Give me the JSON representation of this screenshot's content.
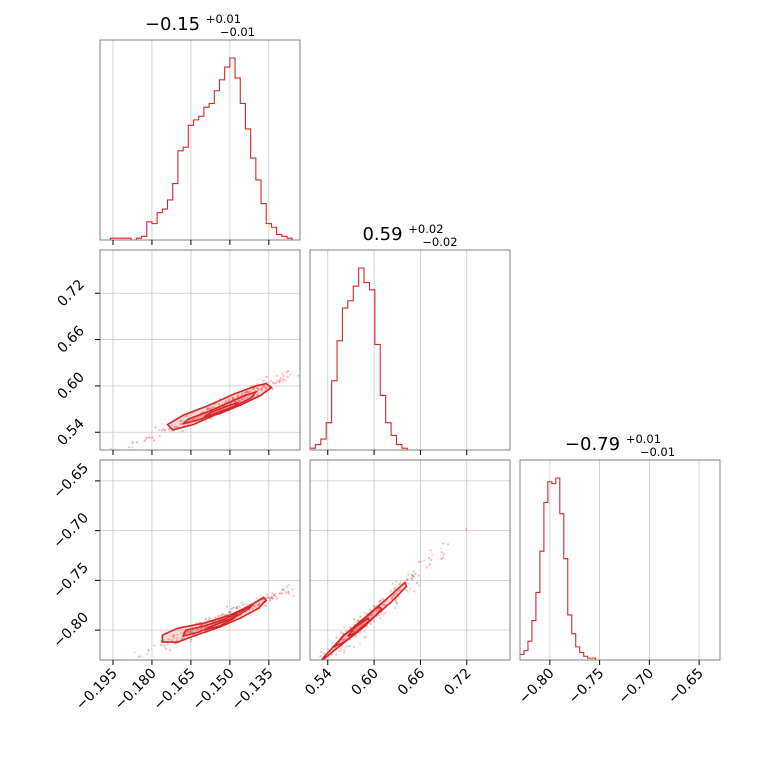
{
  "chart_data": {
    "type": "corner",
    "series_color": "#d62728",
    "parameters": [
      {
        "title_main": "−0.15",
        "title_upper": "+0.01",
        "title_lower": "−0.01",
        "median": -0.15
      },
      {
        "title_main": "0.59",
        "title_upper": "+0.02",
        "title_lower": "−0.02",
        "median": 0.59
      },
      {
        "title_main": "−0.79",
        "title_upper": "+0.01",
        "title_lower": "−0.01",
        "median": -0.79
      }
    ],
    "axes": {
      "p0": {
        "range": [
          -0.2,
          -0.123
        ],
        "ticks": [
          -0.195,
          -0.18,
          -0.165,
          -0.15,
          -0.135
        ],
        "tick_labels": [
          "−0.195",
          "−0.180",
          "−0.165",
          "−0.150",
          "−0.135"
        ]
      },
      "p1": {
        "range": [
          0.517,
          0.776
        ],
        "ticks": [
          0.54,
          0.6,
          0.66,
          0.72
        ],
        "tick_labels": [
          "0.54",
          "0.60",
          "0.66",
          "0.72"
        ]
      },
      "p2": {
        "range": [
          -0.83,
          -0.629
        ],
        "ticks": [
          -0.8,
          -0.75,
          -0.7,
          -0.65
        ],
        "tick_labels": [
          "−0.80",
          "−0.75",
          "−0.70",
          "−0.65"
        ]
      }
    },
    "histograms": [
      {
        "param": 0,
        "edges": [
          -0.2,
          -0.196,
          -0.194,
          -0.192,
          -0.19,
          -0.188,
          -0.186,
          -0.184,
          -0.182,
          -0.18,
          -0.178,
          -0.176,
          -0.174,
          -0.172,
          -0.17,
          -0.168,
          -0.166,
          -0.164,
          -0.162,
          -0.16,
          -0.158,
          -0.156,
          -0.154,
          -0.152,
          -0.15,
          -0.148,
          -0.146,
          -0.144,
          -0.142,
          -0.14,
          -0.138,
          -0.136,
          -0.134,
          -0.132,
          -0.13,
          -0.128,
          -0.126,
          -0.123
        ],
        "counts": [
          0,
          1,
          1,
          1,
          1,
          0,
          1,
          2,
          10,
          9,
          15,
          17,
          22,
          31,
          49,
          51,
          63,
          66,
          68,
          73,
          75,
          82,
          88,
          95,
          100,
          89,
          75,
          61,
          45,
          33,
          20,
          9,
          7,
          3,
          2,
          1,
          0
        ]
      },
      {
        "param": 1,
        "edges": [
          0.517,
          0.524,
          0.531,
          0.538,
          0.545,
          0.552,
          0.559,
          0.566,
          0.573,
          0.58,
          0.587,
          0.594,
          0.601,
          0.608,
          0.615,
          0.622,
          0.629,
          0.636,
          0.643,
          0.65,
          0.657,
          0.664,
          0.776
        ],
        "counts": [
          1,
          3,
          6,
          15,
          38,
          60,
          78,
          82,
          90,
          100,
          92,
          88,
          58,
          30,
          15,
          8,
          3,
          1,
          0,
          0,
          0,
          0
        ]
      },
      {
        "param": 2,
        "edges": [
          -0.83,
          -0.826,
          -0.822,
          -0.818,
          -0.814,
          -0.81,
          -0.806,
          -0.802,
          -0.798,
          -0.794,
          -0.79,
          -0.786,
          -0.782,
          -0.778,
          -0.774,
          -0.77,
          -0.766,
          -0.762,
          -0.758,
          -0.754,
          -0.75,
          -0.746,
          -0.629
        ],
        "counts": [
          3,
          5,
          10,
          21,
          36,
          58,
          84,
          95,
          94,
          97,
          78,
          54,
          24,
          14,
          7,
          4,
          2,
          1,
          1,
          0,
          0,
          0
        ]
      }
    ],
    "pairs": [
      {
        "x": 0,
        "y": 1,
        "contours": [
          [
            [
              -0.172,
              0.543
            ],
            [
              -0.174,
              0.55
            ],
            [
              -0.168,
              0.562
            ],
            [
              -0.158,
              0.575
            ],
            [
              -0.148,
              0.59
            ],
            [
              -0.14,
              0.6
            ],
            [
              -0.136,
              0.603
            ],
            [
              -0.134,
              0.598
            ],
            [
              -0.138,
              0.588
            ],
            [
              -0.146,
              0.575
            ],
            [
              -0.156,
              0.562
            ],
            [
              -0.164,
              0.55
            ]
          ],
          [
            [
              -0.168,
              0.551
            ],
            [
              -0.166,
              0.557
            ],
            [
              -0.158,
              0.567
            ],
            [
              -0.15,
              0.579
            ],
            [
              -0.144,
              0.588
            ],
            [
              -0.14,
              0.592
            ],
            [
              -0.142,
              0.584
            ],
            [
              -0.148,
              0.574
            ],
            [
              -0.155,
              0.565
            ],
            [
              -0.162,
              0.556
            ]
          ],
          [
            [
              -0.16,
              0.56
            ],
            [
              -0.157,
              0.566
            ],
            [
              -0.151,
              0.574
            ],
            [
              -0.147,
              0.578
            ],
            [
              -0.149,
              0.571
            ],
            [
              -0.154,
              0.564
            ]
          ]
        ]
      },
      {
        "x": 0,
        "y": 2,
        "contours": [
          [
            [
              -0.176,
              -0.812
            ],
            [
              -0.176,
              -0.805
            ],
            [
              -0.17,
              -0.798
            ],
            [
              -0.16,
              -0.793
            ],
            [
              -0.15,
              -0.785
            ],
            [
              -0.142,
              -0.775
            ],
            [
              -0.137,
              -0.767
            ],
            [
              -0.136,
              -0.77
            ],
            [
              -0.139,
              -0.778
            ],
            [
              -0.146,
              -0.788
            ],
            [
              -0.154,
              -0.797
            ],
            [
              -0.164,
              -0.806
            ],
            [
              -0.17,
              -0.812
            ]
          ],
          [
            [
              -0.168,
              -0.806
            ],
            [
              -0.167,
              -0.8
            ],
            [
              -0.16,
              -0.796
            ],
            [
              -0.152,
              -0.789
            ],
            [
              -0.145,
              -0.78
            ],
            [
              -0.141,
              -0.774
            ],
            [
              -0.143,
              -0.779
            ],
            [
              -0.148,
              -0.787
            ],
            [
              -0.156,
              -0.795
            ],
            [
              -0.162,
              -0.802
            ]
          ],
          [
            [
              -0.16,
              -0.8
            ],
            [
              -0.156,
              -0.795
            ],
            [
              -0.15,
              -0.789
            ],
            [
              -0.147,
              -0.784
            ],
            [
              -0.149,
              -0.789
            ],
            [
              -0.154,
              -0.796
            ]
          ]
        ]
      },
      {
        "x": 1,
        "y": 2,
        "contours": [
          [
            [
              0.53,
              -0.832
            ],
            [
              0.535,
              -0.827
            ],
            [
              0.56,
              -0.806
            ],
            [
              0.59,
              -0.786
            ],
            [
              0.62,
              -0.766
            ],
            [
              0.64,
              -0.752
            ],
            [
              0.642,
              -0.756
            ],
            [
              0.622,
              -0.772
            ],
            [
              0.592,
              -0.792
            ],
            [
              0.562,
              -0.812
            ]
          ],
          [
            [
              0.55,
              -0.816
            ],
            [
              0.558,
              -0.807
            ],
            [
              0.582,
              -0.792
            ],
            [
              0.606,
              -0.776
            ],
            [
              0.61,
              -0.779
            ],
            [
              0.588,
              -0.796
            ],
            [
              0.562,
              -0.812
            ]
          ],
          [
            [
              0.566,
              -0.806
            ],
            [
              0.574,
              -0.798
            ],
            [
              0.592,
              -0.788
            ],
            [
              0.594,
              -0.791
            ],
            [
              0.578,
              -0.802
            ]
          ]
        ]
      }
    ]
  }
}
